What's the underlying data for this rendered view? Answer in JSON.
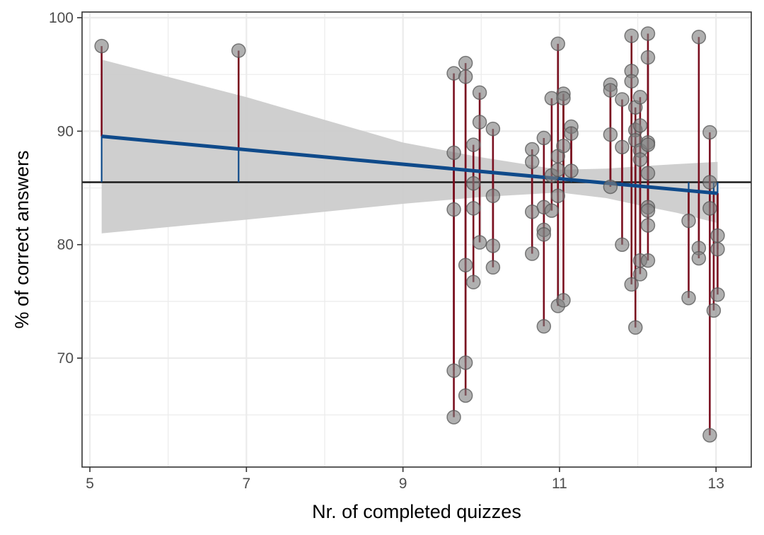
{
  "chart_data": {
    "type": "scatter",
    "xlabel": "Nr. of completed quizzes",
    "ylabel": "% of correct answers",
    "xlim": [
      4.9,
      13.45
    ],
    "ylim": [
      60.4,
      100.5
    ],
    "x_ticks": [
      5,
      7,
      9,
      11,
      13
    ],
    "x_tick_labels": [
      "5",
      "7",
      "9",
      "11",
      "13"
    ],
    "y_ticks": [
      70,
      80,
      90,
      100
    ],
    "y_tick_labels": [
      "70",
      "80",
      "90",
      "100"
    ],
    "x_minor_grid": [
      6,
      8,
      10,
      12
    ],
    "y_minor_grid": [
      65,
      75,
      85,
      95
    ],
    "grid": true,
    "mean_line": 85.5,
    "regression": {
      "intercept": 92.83,
      "slope": -0.638,
      "x_start": 5.15,
      "x_end": 13.02
    },
    "confidence_band": {
      "x": [
        5.15,
        7,
        9,
        10,
        11,
        11.6,
        12,
        12.5,
        13.02
      ],
      "upper": [
        96.3,
        93.0,
        89.0,
        87.7,
        86.6,
        86.7,
        86.9,
        87.1,
        87.3
      ],
      "lower": [
        81.0,
        82.2,
        83.6,
        84.2,
        84.6,
        84.1,
        83.5,
        82.8,
        81.9
      ]
    },
    "colors": {
      "points": "#808080",
      "point_edge": "#555555",
      "residual": "#7a1020",
      "regression": "#0f4a8a",
      "band": "#cccccc",
      "mean_line": "#1a1a1a",
      "grid": "#ebebeb",
      "panel_border": "#333333"
    },
    "points": [
      {
        "x": 5.15,
        "y": 97.5
      },
      {
        "x": 6.9,
        "y": 97.1
      },
      {
        "x": 9.65,
        "y": 95.1
      },
      {
        "x": 9.65,
        "y": 88.1
      },
      {
        "x": 9.65,
        "y": 83.1
      },
      {
        "x": 9.65,
        "y": 68.9
      },
      {
        "x": 9.65,
        "y": 64.8
      },
      {
        "x": 9.8,
        "y": 96.0
      },
      {
        "x": 9.8,
        "y": 94.8
      },
      {
        "x": 9.8,
        "y": 78.2
      },
      {
        "x": 9.8,
        "y": 69.6
      },
      {
        "x": 9.8,
        "y": 66.7
      },
      {
        "x": 9.9,
        "y": 88.8
      },
      {
        "x": 9.9,
        "y": 85.4
      },
      {
        "x": 9.9,
        "y": 83.2
      },
      {
        "x": 9.9,
        "y": 76.7
      },
      {
        "x": 9.98,
        "y": 93.4
      },
      {
        "x": 9.98,
        "y": 90.8
      },
      {
        "x": 9.98,
        "y": 80.2
      },
      {
        "x": 10.15,
        "y": 90.2
      },
      {
        "x": 10.15,
        "y": 84.3
      },
      {
        "x": 10.15,
        "y": 79.9
      },
      {
        "x": 10.15,
        "y": 78.0
      },
      {
        "x": 10.65,
        "y": 88.4
      },
      {
        "x": 10.65,
        "y": 87.3
      },
      {
        "x": 10.65,
        "y": 82.9
      },
      {
        "x": 10.65,
        "y": 79.2
      },
      {
        "x": 10.8,
        "y": 89.4
      },
      {
        "x": 10.8,
        "y": 83.3
      },
      {
        "x": 10.8,
        "y": 81.3
      },
      {
        "x": 10.8,
        "y": 80.9
      },
      {
        "x": 10.8,
        "y": 72.8
      },
      {
        "x": 10.9,
        "y": 92.9
      },
      {
        "x": 10.9,
        "y": 86.1
      },
      {
        "x": 10.9,
        "y": 83.0
      },
      {
        "x": 10.98,
        "y": 97.7
      },
      {
        "x": 10.98,
        "y": 87.8
      },
      {
        "x": 10.98,
        "y": 86.6
      },
      {
        "x": 10.98,
        "y": 84.3
      },
      {
        "x": 10.98,
        "y": 74.6
      },
      {
        "x": 11.05,
        "y": 93.3
      },
      {
        "x": 11.05,
        "y": 92.9
      },
      {
        "x": 11.05,
        "y": 88.7
      },
      {
        "x": 11.05,
        "y": 75.1
      },
      {
        "x": 11.15,
        "y": 90.4
      },
      {
        "x": 11.15,
        "y": 89.8
      },
      {
        "x": 11.15,
        "y": 86.5
      },
      {
        "x": 11.65,
        "y": 94.1
      },
      {
        "x": 11.65,
        "y": 93.6
      },
      {
        "x": 11.65,
        "y": 89.7
      },
      {
        "x": 11.65,
        "y": 85.1
      },
      {
        "x": 11.8,
        "y": 92.8
      },
      {
        "x": 11.8,
        "y": 88.6
      },
      {
        "x": 11.8,
        "y": 80.0
      },
      {
        "x": 11.92,
        "y": 98.4
      },
      {
        "x": 11.92,
        "y": 95.3
      },
      {
        "x": 11.92,
        "y": 94.4
      },
      {
        "x": 11.92,
        "y": 76.5
      },
      {
        "x": 11.97,
        "y": 92.1
      },
      {
        "x": 11.97,
        "y": 90.1
      },
      {
        "x": 11.97,
        "y": 89.2
      },
      {
        "x": 11.97,
        "y": 72.7
      },
      {
        "x": 12.03,
        "y": 93.0
      },
      {
        "x": 12.03,
        "y": 90.5
      },
      {
        "x": 12.03,
        "y": 88.3
      },
      {
        "x": 12.03,
        "y": 87.5
      },
      {
        "x": 12.03,
        "y": 78.6
      },
      {
        "x": 12.03,
        "y": 77.4
      },
      {
        "x": 12.13,
        "y": 98.6
      },
      {
        "x": 12.13,
        "y": 96.5
      },
      {
        "x": 12.13,
        "y": 89.0
      },
      {
        "x": 12.13,
        "y": 88.8
      },
      {
        "x": 12.13,
        "y": 86.3
      },
      {
        "x": 12.13,
        "y": 83.3
      },
      {
        "x": 12.13,
        "y": 83.0
      },
      {
        "x": 12.13,
        "y": 81.7
      },
      {
        "x": 12.13,
        "y": 78.6
      },
      {
        "x": 12.65,
        "y": 82.1
      },
      {
        "x": 12.65,
        "y": 75.3
      },
      {
        "x": 12.78,
        "y": 98.3
      },
      {
        "x": 12.78,
        "y": 79.7
      },
      {
        "x": 12.78,
        "y": 78.8
      },
      {
        "x": 12.92,
        "y": 89.9
      },
      {
        "x": 12.92,
        "y": 85.5
      },
      {
        "x": 12.92,
        "y": 83.2
      },
      {
        "x": 12.92,
        "y": 63.2
      },
      {
        "x": 12.97,
        "y": 74.2
      },
      {
        "x": 13.02,
        "y": 80.8
      },
      {
        "x": 13.02,
        "y": 79.6
      },
      {
        "x": 13.02,
        "y": 75.6
      }
    ]
  }
}
